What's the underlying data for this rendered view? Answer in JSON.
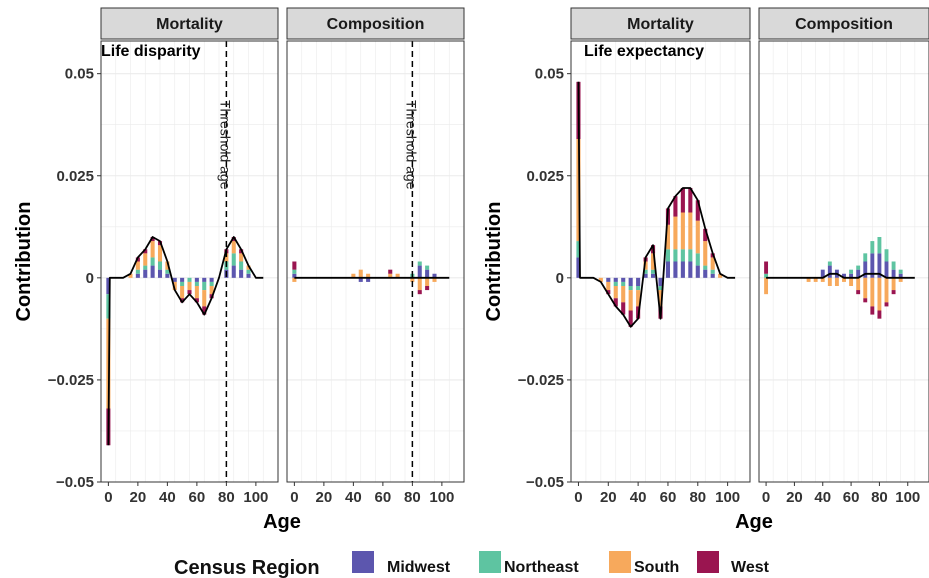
{
  "chart_data": {
    "type": "area",
    "ylabel": "Contribution",
    "xlabel": "Age",
    "ylim": [
      -0.05,
      0.058
    ],
    "xlim": [
      -5,
      115
    ],
    "yticks": [
      -0.05,
      -0.025,
      0,
      0.025,
      0.05
    ],
    "ytick_labels": [
      "−0.05",
      "−0.025",
      "0",
      "0.025",
      "0.05"
    ],
    "xticks": [
      0,
      20,
      40,
      60,
      80,
      100
    ],
    "xtick_labels": [
      "0",
      "20",
      "40",
      "60",
      "80",
      "100"
    ],
    "grid": true,
    "legend": {
      "title": "Census Region",
      "position": "bottom",
      "items": [
        {
          "name": "Midwest",
          "color": "#5C56AE"
        },
        {
          "name": "Northeast",
          "color": "#5EC4A1"
        },
        {
          "name": "South",
          "color": "#F7A95C"
        },
        {
          "name": "West",
          "color": "#9A1550"
        }
      ]
    },
    "ages": [
      0,
      1,
      5,
      10,
      15,
      20,
      25,
      30,
      35,
      40,
      45,
      50,
      55,
      60,
      65,
      70,
      75,
      80,
      85,
      90,
      95,
      100,
      105
    ],
    "plots": [
      {
        "title": "Life disparity",
        "threshold_age": 80,
        "threshold_label": "Threshold age",
        "facets": [
          {
            "strip": "Mortality",
            "series": [
              {
                "name": "Midwest",
                "values": [
                  -0.004,
                  0.0,
                  0.0,
                  0.0,
                  0.0,
                  0.001,
                  0.002,
                  0.003,
                  0.002,
                  0.001,
                  -0.001,
                  -0.001,
                  0.0,
                  -0.001,
                  -0.001,
                  -0.001,
                  0.0,
                  0.002,
                  0.003,
                  0.002,
                  0.001,
                  0.0,
                  0.0
                ]
              },
              {
                "name": "Northeast",
                "values": [
                  -0.006,
                  0.0,
                  0.0,
                  0.0,
                  0.0,
                  0.001,
                  0.001,
                  0.002,
                  0.002,
                  0.001,
                  0.0,
                  -0.001,
                  -0.001,
                  -0.001,
                  -0.002,
                  -0.001,
                  0.0,
                  0.002,
                  0.003,
                  0.002,
                  0.001,
                  0.0,
                  0.0
                ]
              },
              {
                "name": "South",
                "values": [
                  -0.022,
                  0.0,
                  0.0,
                  0.0,
                  0.001,
                  0.002,
                  0.003,
                  0.004,
                  0.004,
                  0.002,
                  -0.002,
                  -0.003,
                  -0.002,
                  -0.003,
                  -0.004,
                  -0.002,
                  0.0,
                  0.002,
                  0.003,
                  0.002,
                  0.001,
                  0.0,
                  0.0
                ]
              },
              {
                "name": "West",
                "values": [
                  -0.009,
                  0.0,
                  0.0,
                  0.0,
                  0.0,
                  0.001,
                  0.001,
                  0.001,
                  0.001,
                  0.0,
                  0.0,
                  -0.001,
                  -0.001,
                  -0.001,
                  -0.002,
                  -0.001,
                  0.0,
                  0.001,
                  0.001,
                  0.001,
                  0.0,
                  0.0,
                  0.0
                ]
              }
            ],
            "total": [
              -0.041,
              0.0,
              0.0,
              0.0,
              0.001,
              0.005,
              0.007,
              0.01,
              0.009,
              0.004,
              -0.003,
              -0.006,
              -0.004,
              -0.006,
              -0.009,
              -0.005,
              0.0,
              0.007,
              0.01,
              0.007,
              0.003,
              0.0,
              0.0
            ]
          },
          {
            "strip": "Composition",
            "series": [
              {
                "name": "Midwest",
                "values": [
                  0.001,
                  0.0,
                  0.0,
                  0.0,
                  0.0,
                  0.0,
                  0.0,
                  0.0,
                  0.0,
                  0.0,
                  -0.001,
                  -0.001,
                  0.0,
                  0.0,
                  0.0,
                  0.0,
                  0.0,
                  0.0,
                  0.003,
                  0.002,
                  0.001,
                  0.0,
                  0.0
                ]
              },
              {
                "name": "Northeast",
                "values": [
                  0.001,
                  0.0,
                  0.0,
                  0.0,
                  0.0,
                  0.0,
                  0.0,
                  0.0,
                  0.0,
                  0.0,
                  0.0,
                  0.0,
                  0.0,
                  0.0,
                  0.0,
                  0.0,
                  0.0,
                  0.001,
                  0.001,
                  0.001,
                  0.0,
                  0.0,
                  0.0
                ]
              },
              {
                "name": "South",
                "values": [
                  -0.001,
                  0.0,
                  0.0,
                  0.0,
                  0.0,
                  0.0,
                  0.0,
                  0.0,
                  0.0,
                  0.001,
                  0.002,
                  0.001,
                  0.0,
                  0.0,
                  0.001,
                  0.001,
                  0.0,
                  -0.001,
                  -0.003,
                  -0.002,
                  -0.001,
                  0.0,
                  0.0
                ]
              },
              {
                "name": "West",
                "values": [
                  0.002,
                  0.0,
                  0.0,
                  0.0,
                  0.0,
                  0.0,
                  0.0,
                  0.0,
                  0.0,
                  0.0,
                  0.0,
                  0.0,
                  0.0,
                  0.0,
                  0.001,
                  0.0,
                  0.0,
                  0.0,
                  -0.001,
                  -0.001,
                  0.0,
                  0.0,
                  0.0
                ]
              }
            ],
            "total": [
              0.0,
              0.0,
              0.0,
              0.0,
              0.0,
              0.0,
              0.0,
              0.0,
              0.0,
              0.0,
              0.0,
              0.0,
              0.0,
              0.0,
              0.0,
              0.0,
              0.0,
              0.0,
              0.0,
              0.0,
              0.0,
              0.0,
              0.0
            ]
          }
        ]
      },
      {
        "title": "Life expectancy",
        "threshold_age": null,
        "facets": [
          {
            "strip": "Mortality",
            "series": [
              {
                "name": "Midwest",
                "values": [
                  0.005,
                  0.0,
                  0.0,
                  0.0,
                  0.0,
                  -0.001,
                  -0.001,
                  -0.001,
                  -0.002,
                  -0.002,
                  0.001,
                  0.001,
                  -0.002,
                  0.004,
                  0.004,
                  0.004,
                  0.004,
                  0.003,
                  0.002,
                  0.001,
                  0.0,
                  0.0,
                  0.0
                ]
              },
              {
                "name": "Northeast",
                "values": [
                  0.004,
                  0.0,
                  0.0,
                  0.0,
                  0.0,
                  0.0,
                  -0.001,
                  -0.001,
                  -0.001,
                  -0.001,
                  0.001,
                  0.001,
                  -0.001,
                  0.003,
                  0.003,
                  0.003,
                  0.003,
                  0.003,
                  0.001,
                  0.001,
                  0.0,
                  0.0,
                  0.0
                ]
              },
              {
                "name": "South",
                "values": [
                  0.025,
                  0.0,
                  0.0,
                  0.0,
                  -0.001,
                  -0.002,
                  -0.003,
                  -0.004,
                  -0.005,
                  -0.004,
                  0.002,
                  0.004,
                  -0.004,
                  0.006,
                  0.008,
                  0.009,
                  0.009,
                  0.008,
                  0.006,
                  0.003,
                  0.001,
                  0.0,
                  0.0
                ]
              },
              {
                "name": "West",
                "values": [
                  0.014,
                  0.0,
                  0.0,
                  0.0,
                  0.0,
                  -0.001,
                  -0.002,
                  -0.003,
                  -0.004,
                  -0.003,
                  0.001,
                  0.002,
                  -0.003,
                  0.004,
                  0.005,
                  0.006,
                  0.006,
                  0.005,
                  0.003,
                  0.001,
                  0.0,
                  0.0,
                  0.0
                ]
              }
            ],
            "total": [
              0.048,
              0.0,
              0.0,
              0.0,
              -0.001,
              -0.004,
              -0.007,
              -0.009,
              -0.012,
              -0.01,
              0.005,
              0.008,
              -0.01,
              0.017,
              0.02,
              0.022,
              0.022,
              0.019,
              0.012,
              0.006,
              0.001,
              0.0,
              0.0
            ]
          },
          {
            "strip": "Composition",
            "series": [
              {
                "name": "Midwest",
                "values": [
                  0.0,
                  0.0,
                  0.0,
                  0.0,
                  0.0,
                  0.0,
                  0.0,
                  0.0,
                  0.0,
                  0.002,
                  0.003,
                  0.002,
                  0.001,
                  0.001,
                  0.002,
                  0.004,
                  0.006,
                  0.006,
                  0.004,
                  0.002,
                  0.001,
                  0.0,
                  0.0
                ]
              },
              {
                "name": "Northeast",
                "values": [
                  0.001,
                  0.0,
                  0.0,
                  0.0,
                  0.0,
                  0.0,
                  0.0,
                  0.0,
                  0.0,
                  0.0,
                  0.001,
                  0.0,
                  0.0,
                  0.001,
                  0.001,
                  0.002,
                  0.003,
                  0.004,
                  0.003,
                  0.002,
                  0.001,
                  0.0,
                  0.0
                ]
              },
              {
                "name": "South",
                "values": [
                  -0.004,
                  0.0,
                  0.0,
                  0.0,
                  0.0,
                  0.0,
                  0.0,
                  -0.001,
                  -0.001,
                  -0.001,
                  -0.002,
                  -0.002,
                  -0.001,
                  -0.002,
                  -0.003,
                  -0.005,
                  -0.007,
                  -0.008,
                  -0.006,
                  -0.003,
                  -0.001,
                  0.0,
                  0.0
                ]
              },
              {
                "name": "West",
                "values": [
                  0.003,
                  0.0,
                  0.0,
                  0.0,
                  0.0,
                  0.0,
                  0.0,
                  0.0,
                  0.0,
                  0.0,
                  0.0,
                  0.0,
                  0.0,
                  0.0,
                  -0.001,
                  -0.001,
                  -0.002,
                  -0.002,
                  -0.001,
                  -0.001,
                  0.0,
                  0.0,
                  0.0
                ]
              }
            ],
            "total": [
              0.0,
              0.0,
              0.0,
              0.0,
              0.0,
              0.0,
              0.0,
              0.0,
              0.0,
              0.0,
              0.001,
              0.001,
              0.0,
              0.0,
              0.0,
              0.001,
              0.001,
              0.001,
              0.0,
              0.0,
              0.0,
              0.0,
              0.0
            ]
          }
        ]
      }
    ]
  }
}
